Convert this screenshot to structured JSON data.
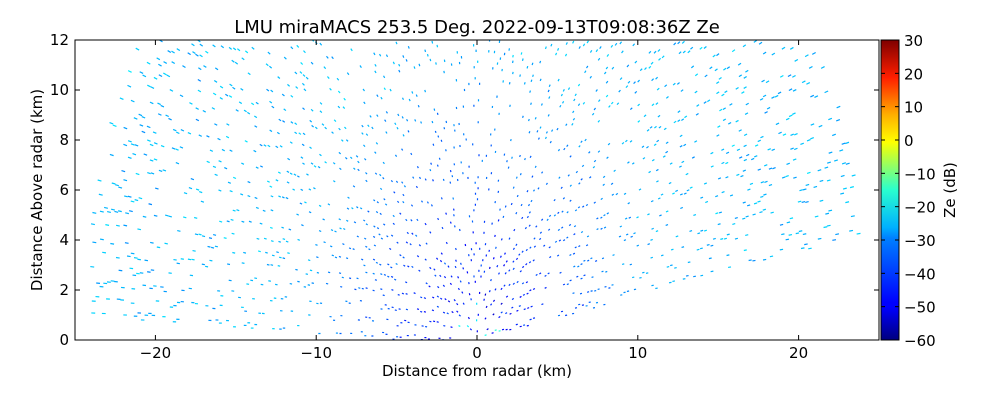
{
  "chart_data": {
    "type": "heatmap",
    "subtype": "radar_rhi_scan",
    "title": "LMU miraMACS 253.5 Deg. 2022-09-13T09:08:36Z  Ze",
    "xlabel": "Distance from radar (km)",
    "ylabel": "Distance Above radar  (km)",
    "xlim": [
      -25,
      25
    ],
    "ylim": [
      0,
      12
    ],
    "x_ticks": [
      -20,
      -10,
      0,
      10,
      20
    ],
    "x_tick_labels": [
      "−20",
      "−10",
      "0",
      "10",
      "20"
    ],
    "y_ticks": [
      0,
      2,
      4,
      6,
      8,
      10,
      12
    ],
    "y_tick_labels": [
      "0",
      "2",
      "4",
      "6",
      "8",
      "10",
      "12"
    ],
    "grid": false,
    "colorbar": {
      "label": "Ze (dB)",
      "range": [
        -60,
        30
      ],
      "ticks": [
        30,
        20,
        10,
        0,
        -10,
        -20,
        -30,
        -40,
        -50,
        -60
      ],
      "tick_labels": [
        "30",
        "20",
        "10",
        "0",
        "−10",
        "−20",
        "−30",
        "−40",
        "−50",
        "−60"
      ],
      "colormap": "jet"
    },
    "scan": {
      "radar_position_km": [
        0,
        0
      ],
      "max_range_km": 24.5,
      "min_elevation_left_deg": 3,
      "min_elevation_right_deg": 10,
      "dbz_near_radar": [
        -55,
        -45
      ],
      "dbz_far_range": [
        -35,
        -30
      ]
    }
  }
}
